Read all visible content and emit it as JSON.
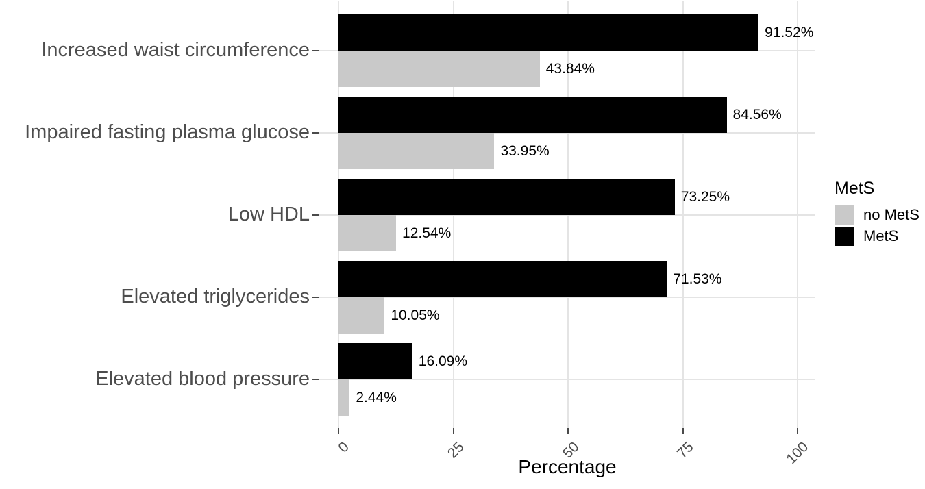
{
  "figure": {
    "background": "#ffffff"
  },
  "chart_data": {
    "type": "bar",
    "orientation": "horizontal",
    "title": "",
    "xlabel": "Percentage",
    "ylabel": "",
    "xlim": [
      0,
      100
    ],
    "x_ticks": [
      0,
      25,
      50,
      75,
      100
    ],
    "x_tick_labels": [
      "0",
      "25",
      "50",
      "75",
      "100"
    ],
    "grid": "major",
    "categories": [
      "Increased waist circumference",
      "Impaired fasting plasma glucose",
      "Low HDL",
      "Elevated triglycerides",
      "Elevated blood pressure"
    ],
    "series": [
      {
        "name": "MetS",
        "color": "#000000",
        "values": [
          91.52,
          84.56,
          73.25,
          71.53,
          16.09
        ],
        "labels": [
          "91.52%",
          "84.56%",
          "73.25%",
          "71.53%",
          "16.09%"
        ]
      },
      {
        "name": "no MetS",
        "color": "#c9c9c9",
        "values": [
          43.84,
          33.95,
          12.54,
          10.05,
          2.44
        ],
        "labels": [
          "43.84%",
          "33.95%",
          "12.54%",
          "10.05%",
          "2.44%"
        ]
      }
    ],
    "legend": {
      "title": "MetS",
      "position": "right",
      "entries": [
        {
          "label": "no MetS",
          "color": "#c9c9c9"
        },
        {
          "label": "MetS",
          "color": "#000000"
        }
      ]
    },
    "colors": {
      "grid": "#e4e4e4",
      "tick": "#4a4a4a",
      "axis_text": "#4d4d4d",
      "value_text": "#000000"
    }
  }
}
